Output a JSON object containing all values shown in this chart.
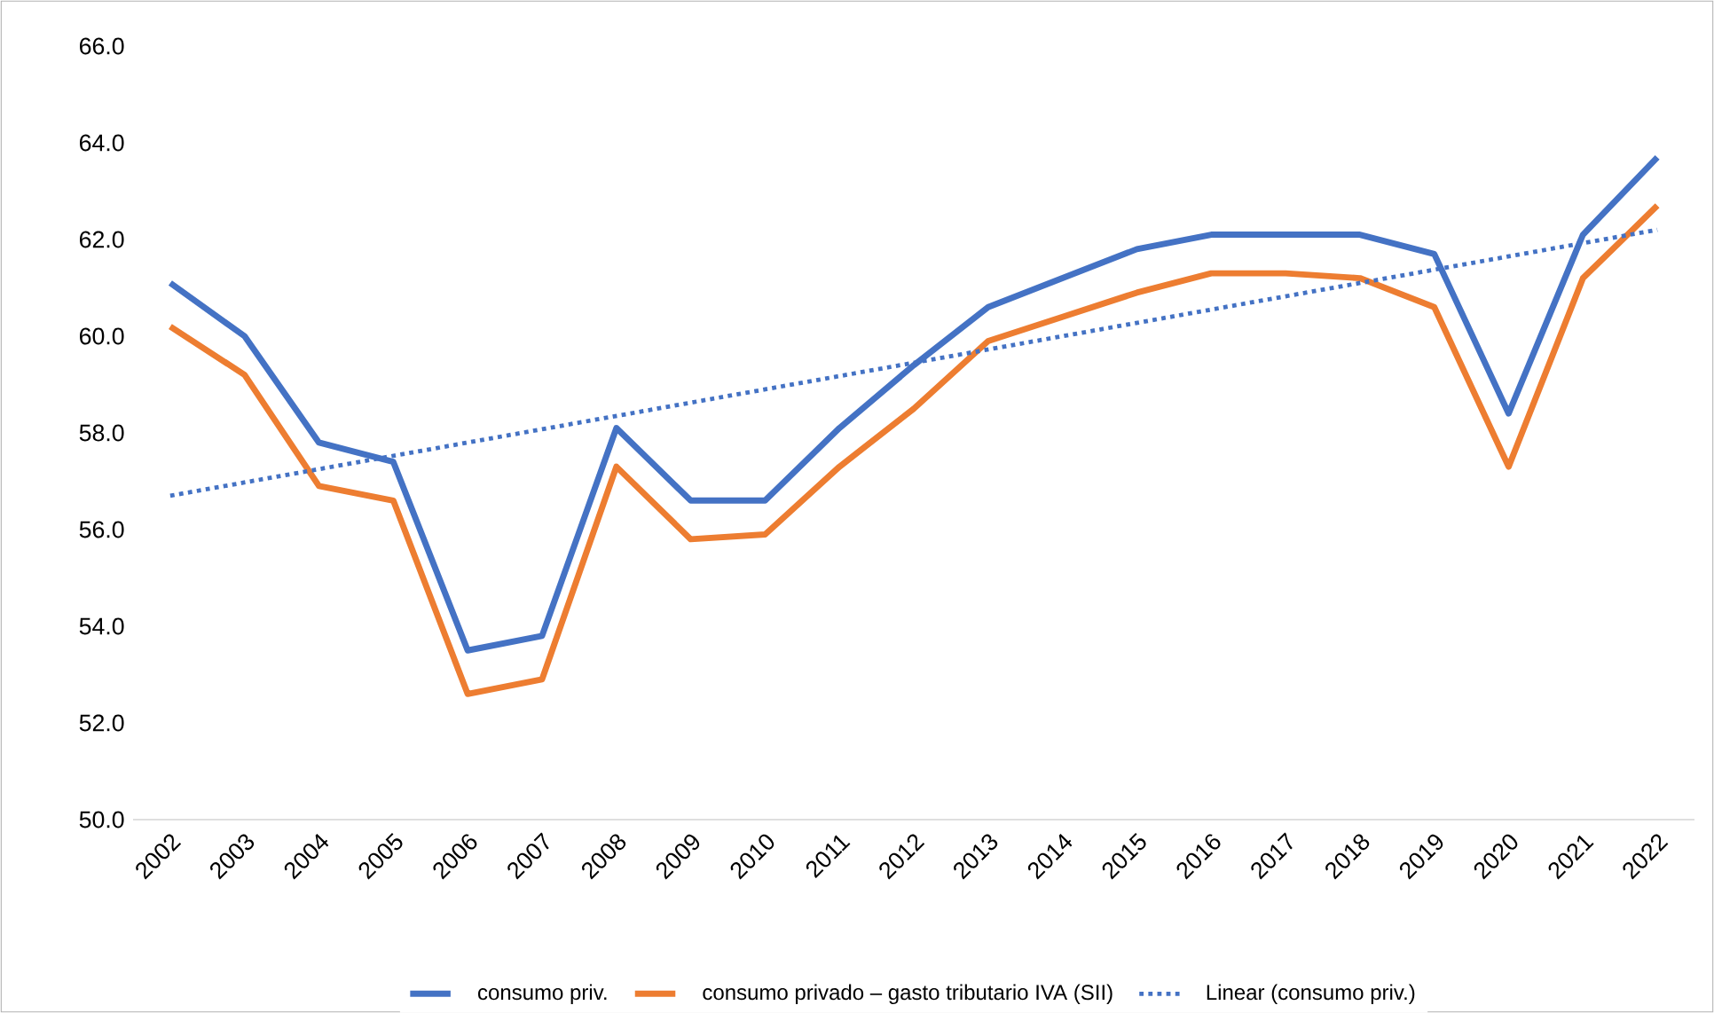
{
  "chart_data": {
    "type": "line",
    "categories": [
      "2002",
      "2003",
      "2004",
      "2005",
      "2006",
      "2007",
      "2008",
      "2009",
      "2010",
      "2011",
      "2012",
      "2013",
      "2014",
      "2015",
      "2016",
      "2017",
      "2018",
      "2019",
      "2020",
      "2021",
      "2022"
    ],
    "series": [
      {
        "name": "consumo priv.",
        "color": "#4472c4",
        "values": [
          61.1,
          60.0,
          57.8,
          57.4,
          53.5,
          53.8,
          58.1,
          56.6,
          56.6,
          58.1,
          59.4,
          60.6,
          61.2,
          61.8,
          62.1,
          62.1,
          62.1,
          61.7,
          58.4,
          62.1,
          63.7
        ]
      },
      {
        "name": "consumo privado – gasto tributario IVA (SII)",
        "color": "#ed7d31",
        "values": [
          60.2,
          59.2,
          56.9,
          56.6,
          52.6,
          52.9,
          57.3,
          55.8,
          55.9,
          57.3,
          58.5,
          59.9,
          60.4,
          60.9,
          61.3,
          61.3,
          61.2,
          60.6,
          57.3,
          61.2,
          62.7
        ]
      },
      {
        "name": "Linear (consumo priv.)",
        "color": "#4472c4",
        "line_style": "dotted",
        "values": [
          56.7,
          null,
          null,
          null,
          null,
          null,
          null,
          null,
          null,
          null,
          null,
          null,
          null,
          null,
          null,
          null,
          null,
          null,
          null,
          null,
          62.2
        ]
      }
    ],
    "ylim": [
      50,
      66
    ],
    "yticks": [
      {
        "value": 50,
        "label": "50.0"
      },
      {
        "value": 52,
        "label": "52.0"
      },
      {
        "value": 54,
        "label": "54.0"
      },
      {
        "value": 56,
        "label": "56.0"
      },
      {
        "value": 58,
        "label": "58.0"
      },
      {
        "value": 60,
        "label": "60.0"
      },
      {
        "value": 62,
        "label": "62.0"
      },
      {
        "value": 64,
        "label": "64.0"
      },
      {
        "value": 66,
        "label": "66.0"
      }
    ],
    "legend": "bottom",
    "line_style": "solid",
    "marker": "none"
  }
}
